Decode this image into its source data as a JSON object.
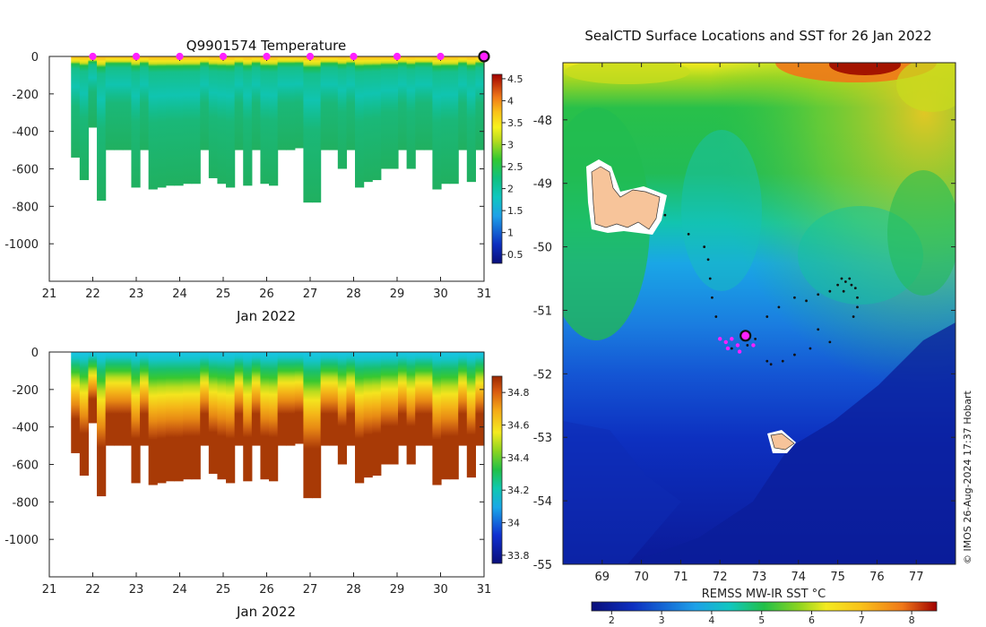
{
  "chart_data": [
    {
      "type": "heatmap",
      "title": "Q9901574  Temperature",
      "xlabel": "Jan 2022",
      "x_ticks": [
        "21",
        "22",
        "23",
        "24",
        "25",
        "26",
        "27",
        "28",
        "29",
        "30",
        "31"
      ],
      "xlim": [
        21,
        31
      ],
      "y_ticks": [
        "0",
        "-200",
        "-400",
        "-600",
        "-800",
        "-1000"
      ],
      "ylim": [
        -1200,
        0
      ],
      "colorbar": {
        "min": 0.3,
        "max": 4.6,
        "ticks": [
          "0.5",
          "1",
          "1.5",
          "2",
          "2.5",
          "3",
          "3.5",
          "4",
          "4.5"
        ]
      },
      "surface_profile_days": [
        22,
        23,
        24,
        25,
        26,
        27,
        28,
        29,
        30
      ],
      "current_day": 31,
      "max_depths": [
        -540,
        -660,
        -380,
        -770,
        -500,
        -500,
        -500,
        -700,
        -500,
        -710,
        -700,
        -690,
        -690,
        -680,
        -680,
        -500,
        -650,
        -680,
        -700,
        -500,
        -690,
        -500,
        -680,
        -690,
        -500,
        -500,
        -490,
        -780,
        -780,
        -500,
        -500,
        -600,
        -500,
        -700,
        -670,
        -660,
        -600,
        -600,
        -500,
        -600,
        -500,
        -500,
        -710,
        -680,
        -680,
        -500,
        -670,
        -500
      ]
    },
    {
      "type": "heatmap",
      "title": "",
      "xlabel": "Jan 2022",
      "x_ticks": [
        "21",
        "22",
        "23",
        "24",
        "25",
        "26",
        "27",
        "28",
        "29",
        "30",
        "31"
      ],
      "xlim": [
        21,
        31
      ],
      "y_ticks": [
        "0",
        "-200",
        "-400",
        "-600",
        "-800",
        "-1000"
      ],
      "ylim": [
        -1200,
        0
      ],
      "colorbar": {
        "min": 33.75,
        "max": 34.9,
        "ticks": [
          "33.8",
          "34",
          "34.2",
          "34.4",
          "34.6",
          "34.8"
        ]
      }
    },
    {
      "type": "map",
      "title": "SealCTD Surface Locations and SST for 26 Jan 2022",
      "x_ticks": [
        "69",
        "70",
        "71",
        "72",
        "73",
        "74",
        "75",
        "76",
        "77"
      ],
      "xlim": [
        68,
        78
      ],
      "y_ticks": [
        "-48",
        "-49",
        "-50",
        "-51",
        "-52",
        "-53",
        "-54",
        "-55"
      ],
      "ylim": [
        -55,
        -47.1
      ],
      "colorbar_label": "REMSS MW-IR SST °C",
      "colorbar": {
        "min": 1.6,
        "max": 8.5,
        "ticks": [
          "2",
          "3",
          "4",
          "5",
          "6",
          "7",
          "8"
        ]
      },
      "track_points": [
        [
          75.2,
          -50.55
        ],
        [
          75.1,
          -50.5
        ],
        [
          75.35,
          -50.6
        ],
        [
          75.0,
          -50.6
        ],
        [
          75.45,
          -50.65
        ],
        [
          75.15,
          -50.7
        ],
        [
          75.3,
          -50.5
        ],
        [
          75.5,
          -50.8
        ],
        [
          75.4,
          -51.1
        ],
        [
          75.5,
          -50.95
        ],
        [
          74.8,
          -50.7
        ],
        [
          74.5,
          -50.75
        ],
        [
          74.2,
          -50.85
        ],
        [
          73.9,
          -50.8
        ],
        [
          73.5,
          -50.95
        ],
        [
          73.2,
          -51.1
        ],
        [
          74.5,
          -51.3
        ],
        [
          74.8,
          -51.5
        ],
        [
          74.3,
          -51.6
        ],
        [
          73.9,
          -51.7
        ],
        [
          73.6,
          -51.8
        ],
        [
          73.3,
          -51.85
        ],
        [
          73.2,
          -51.8
        ],
        [
          72.9,
          -51.45
        ],
        [
          72.7,
          -51.55
        ],
        [
          72.3,
          -51.6
        ],
        [
          71.9,
          -51.1
        ],
        [
          71.8,
          -50.8
        ],
        [
          71.75,
          -50.5
        ],
        [
          71.7,
          -50.2
        ],
        [
          71.6,
          -50.0
        ],
        [
          71.2,
          -49.8
        ],
        [
          70.6,
          -49.5
        ]
      ],
      "surface_points": [
        [
          72.0,
          -51.45
        ],
        [
          72.15,
          -51.5
        ],
        [
          72.3,
          -51.45
        ],
        [
          72.45,
          -51.55
        ],
        [
          72.2,
          -51.6
        ],
        [
          72.5,
          -51.65
        ],
        [
          72.85,
          -51.55
        ]
      ],
      "current_location": [
        72.65,
        -51.4
      ],
      "islands": [
        "Kerguelen",
        "Heard"
      ]
    }
  ],
  "credit": "© IMOS 26-Aug-2024 17:37 Hobart"
}
